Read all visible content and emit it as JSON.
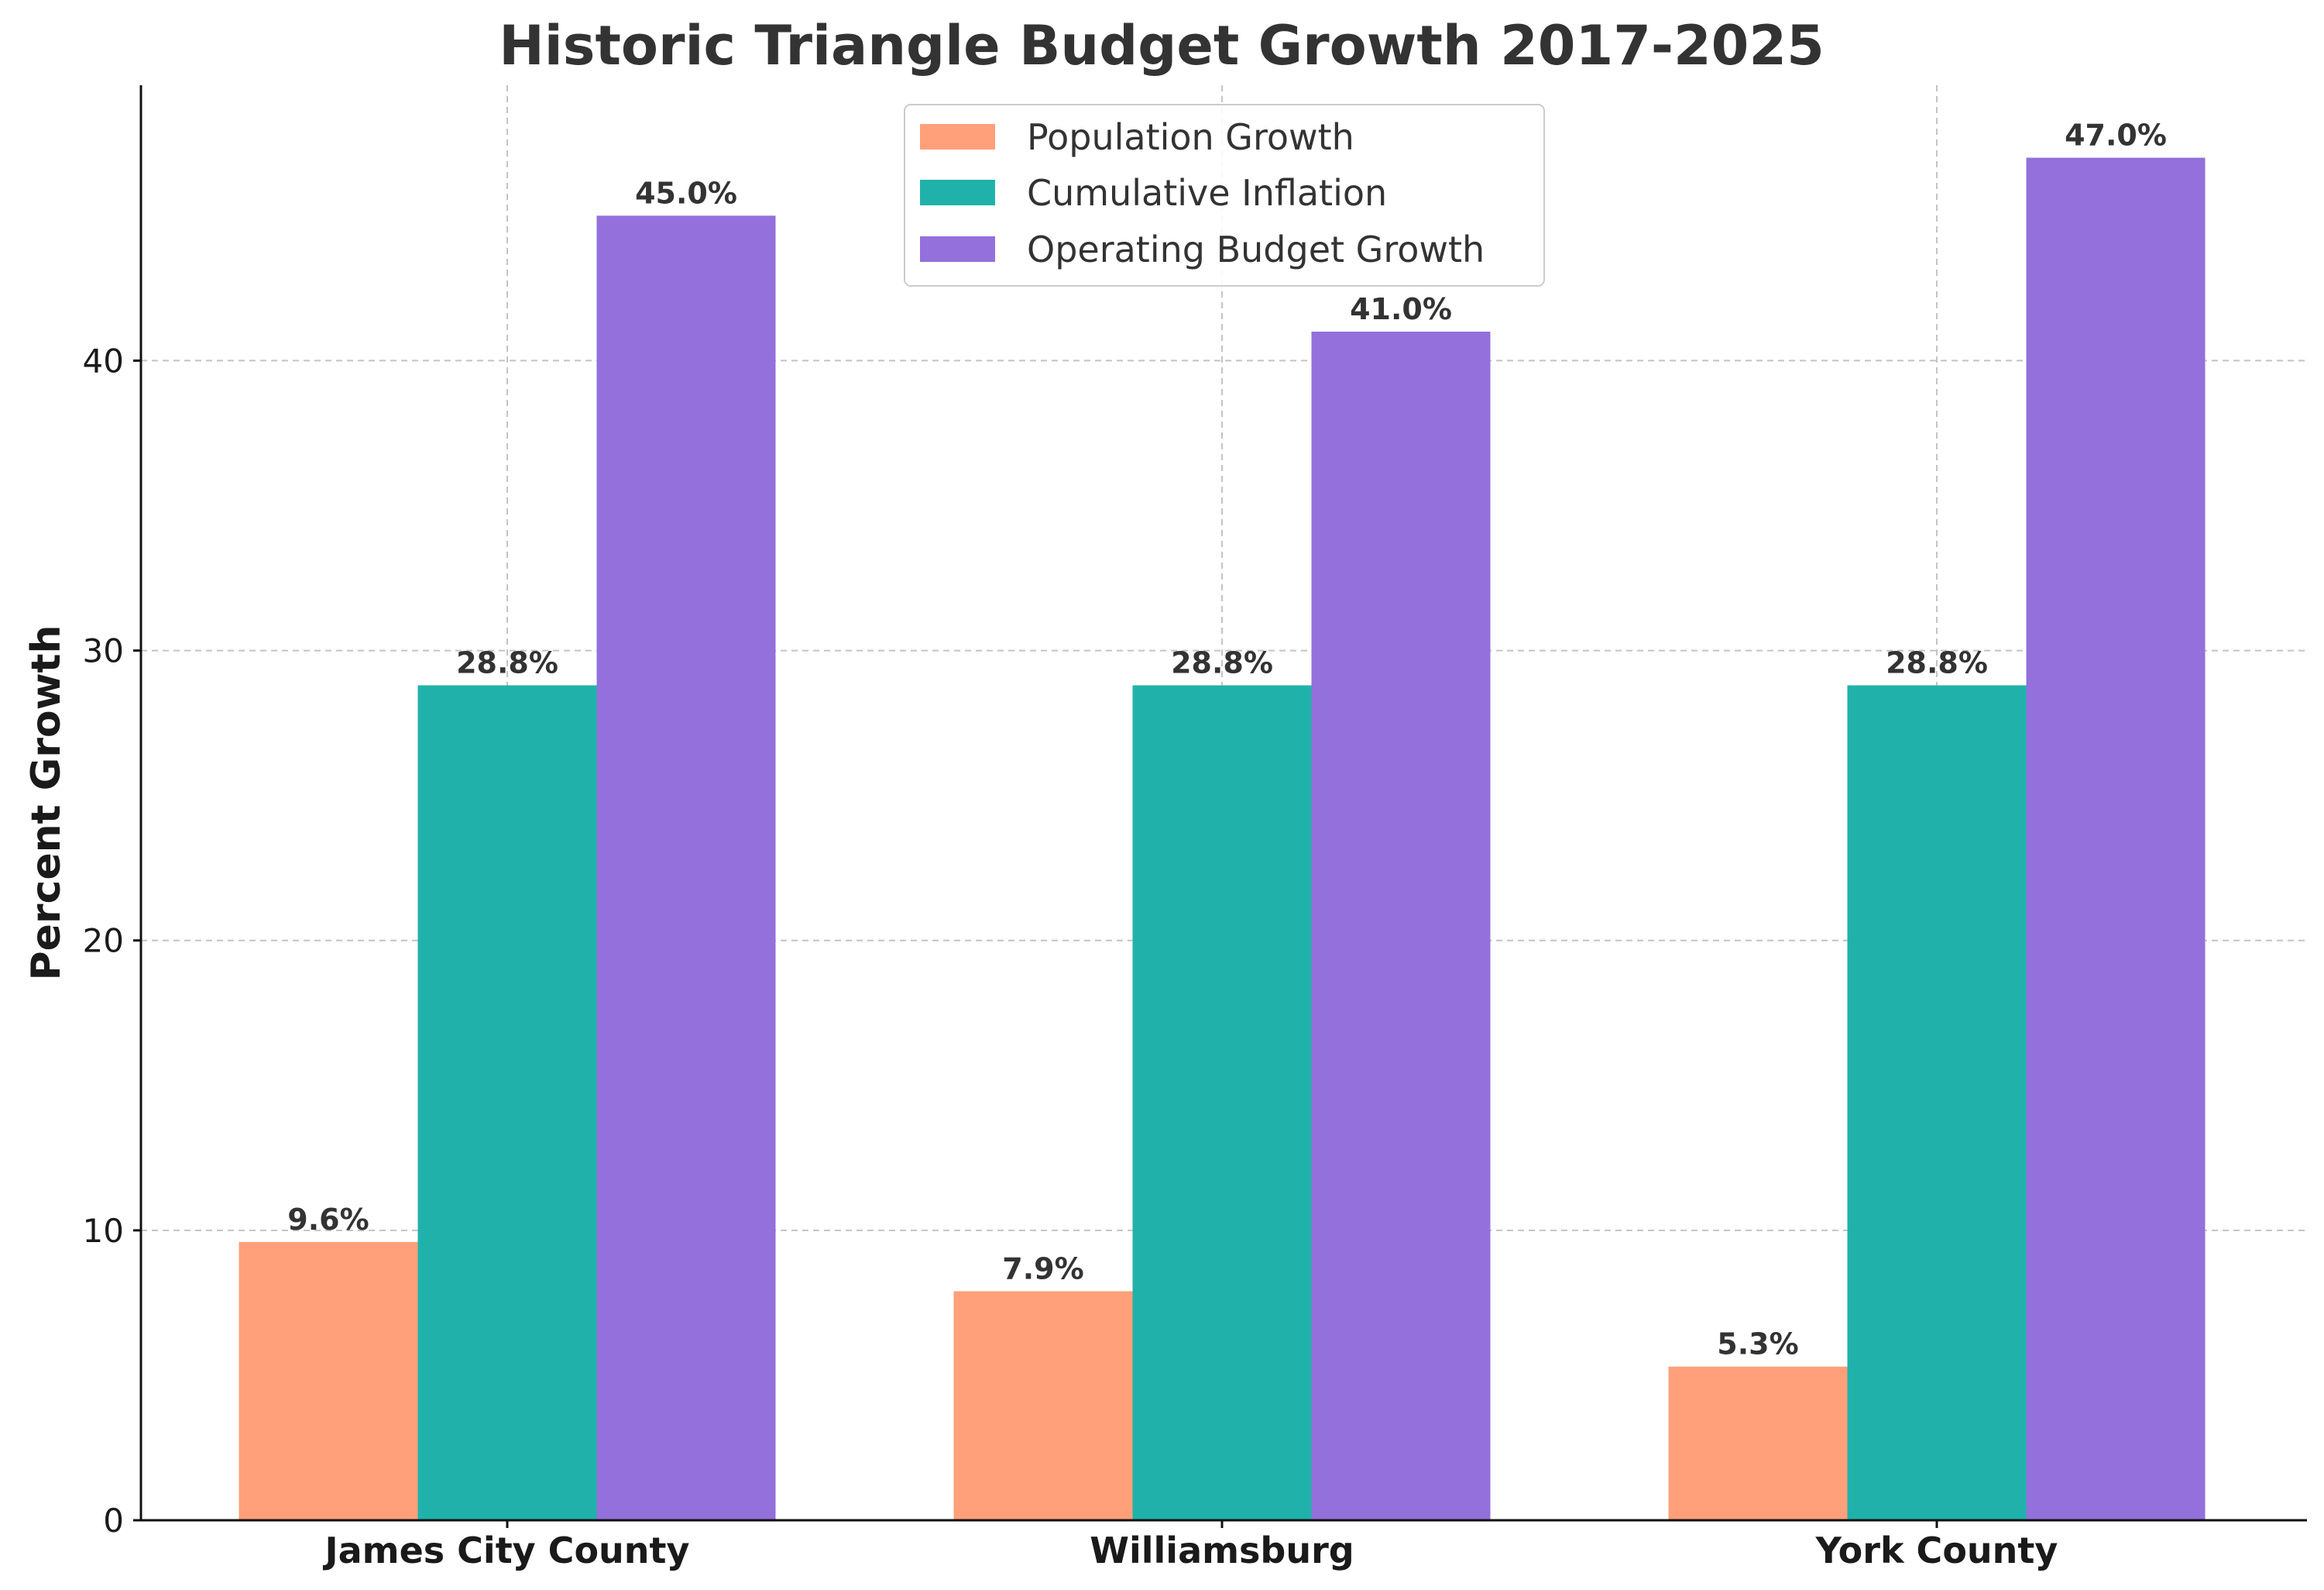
{
  "chart_data": {
    "type": "bar",
    "title": "Historic Triangle Budget Growth 2017-2025",
    "xlabel": "",
    "ylabel": "Percent Growth",
    "categories": [
      "James City County",
      "Williamsburg",
      "York County"
    ],
    "ylim": [
      0,
      49.5
    ],
    "yticks": [
      0,
      10,
      20,
      30,
      40
    ],
    "grid": true,
    "legend_position": "top-center",
    "series": [
      {
        "name": "Population Growth",
        "color": "#FFA07A",
        "values": [
          9.6,
          7.9,
          5.3
        ],
        "labels": [
          "9.6%",
          "7.9%",
          "5.3%"
        ]
      },
      {
        "name": "Cumulative Inflation",
        "color": "#20B2AA",
        "values": [
          28.8,
          28.8,
          28.8
        ],
        "labels": [
          "28.8%",
          "28.8%",
          "28.8%"
        ]
      },
      {
        "name": "Operating Budget Growth",
        "color": "#9370DB",
        "values": [
          45.0,
          41.0,
          47.0
        ],
        "labels": [
          "45.0%",
          "41.0%",
          "47.0%"
        ]
      }
    ]
  }
}
